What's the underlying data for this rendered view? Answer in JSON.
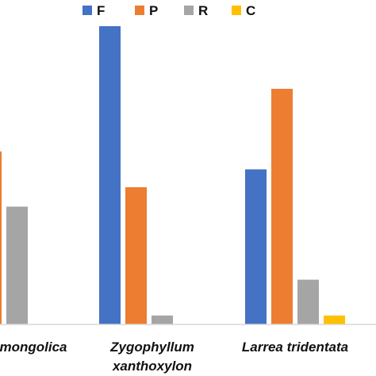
{
  "chart_data": {
    "type": "bar",
    "categories": [
      [
        "mongolica"
      ],
      [
        "Zygophyllum",
        "xanthoxylon"
      ],
      [
        "Larrea tridentata"
      ]
    ],
    "series": [
      {
        "name": "F",
        "color": "#4472C4",
        "values": [
          null,
          100,
          52
        ]
      },
      {
        "name": "P",
        "color": "#ED7D31",
        "values": [
          58,
          46,
          79
        ]
      },
      {
        "name": "R",
        "color": "#A5A5A5",
        "values": [
          39.5,
          3,
          15
        ]
      },
      {
        "name": "C",
        "color": "#FFC000",
        "values": [
          0,
          0,
          3
        ]
      }
    ],
    "ylim": [
      0,
      100
    ],
    "grid": false,
    "legend_position": "top",
    "title": "",
    "xlabel": "",
    "ylabel": ""
  }
}
